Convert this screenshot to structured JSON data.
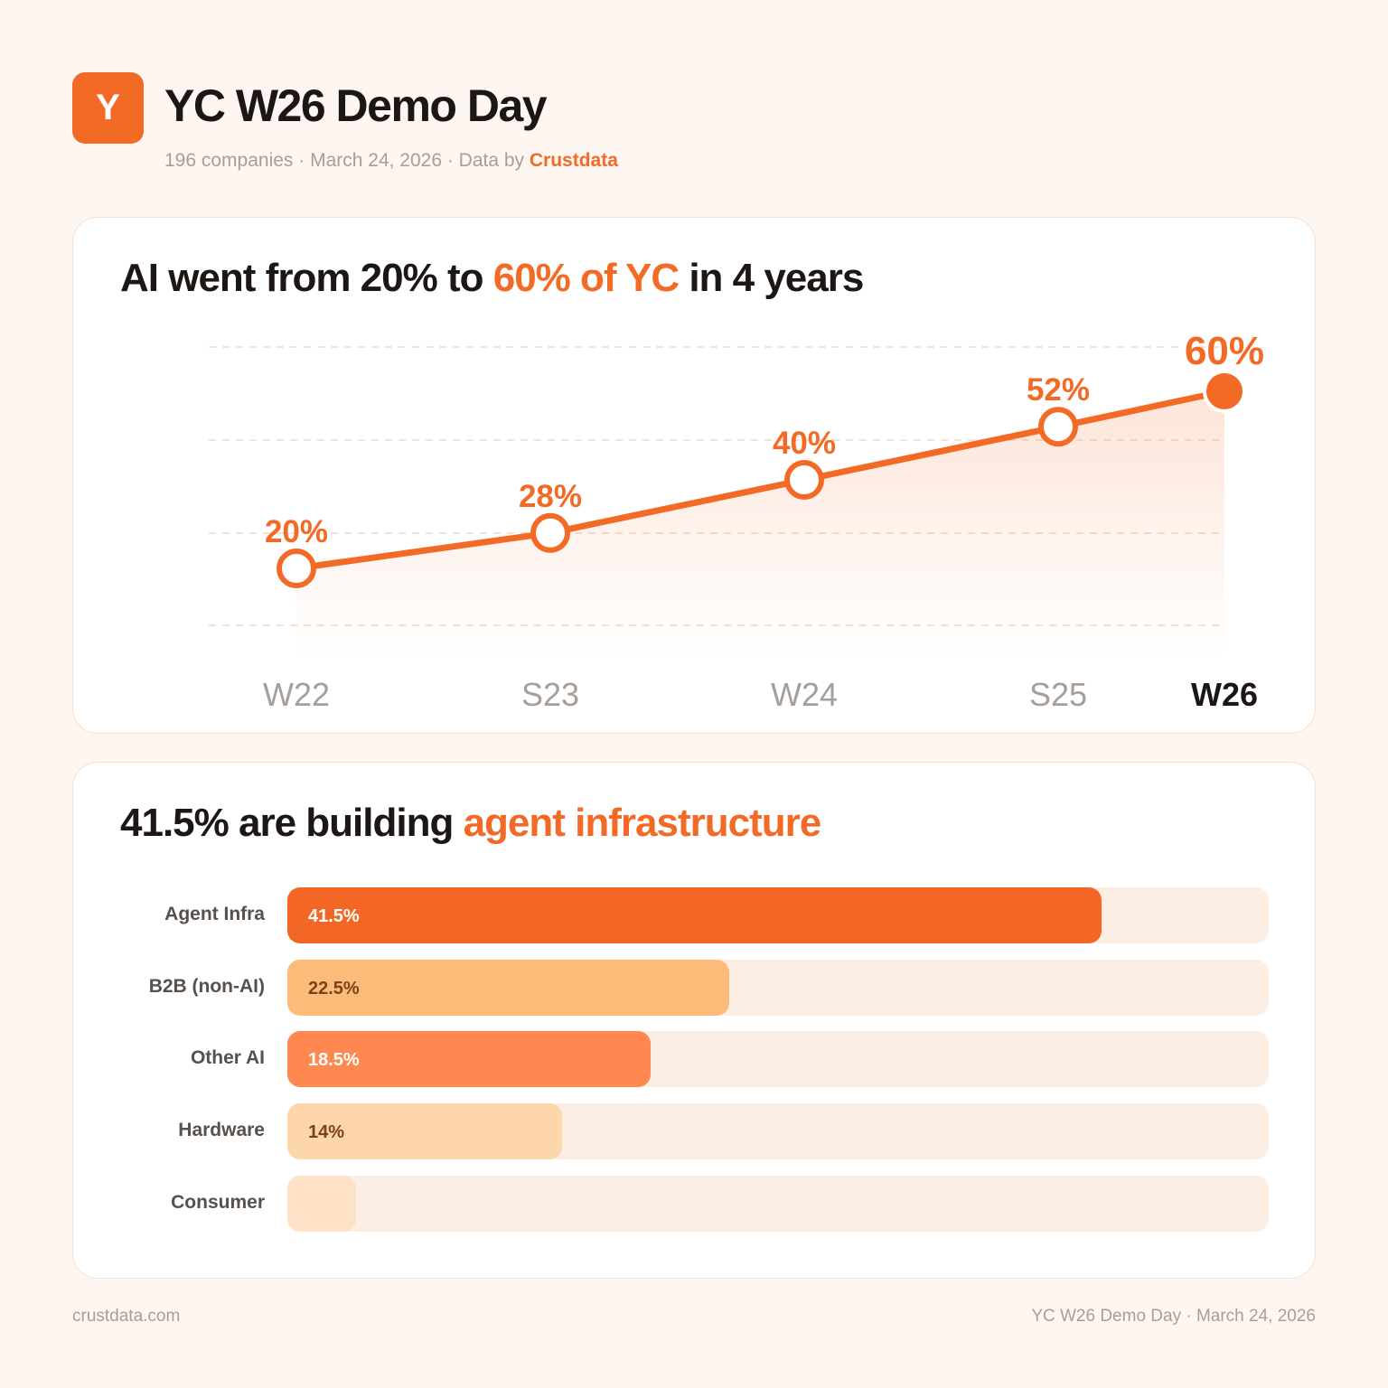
{
  "header": {
    "logo_letter": "Y",
    "title": "YC W26 Demo Day",
    "subtitle_prefix": "196 companies · March 24, 2026 · Data by ",
    "subtitle_brand": "Crustdata"
  },
  "colors": {
    "accent": "#f26a25",
    "background": "#fdf6f1"
  },
  "chart_data": [
    {
      "type": "line",
      "title_parts": [
        "AI went from 20% to ",
        "60% of YC",
        " in 4 years"
      ],
      "categories": [
        "W22",
        "S23",
        "W24",
        "S25",
        "W26"
      ],
      "values": [
        20,
        28,
        40,
        52,
        60
      ],
      "labels": [
        "20%",
        "28%",
        "40%",
        "52%",
        "60%"
      ],
      "ylim": [
        0,
        78
      ],
      "grid": true,
      "highlight": "W26"
    },
    {
      "type": "bar",
      "orientation": "horizontal",
      "title_parts": [
        "41.5% are building ",
        "agent infrastructure"
      ],
      "categories": [
        "Agent Infra",
        "B2B (non-AI)",
        "Other AI",
        "Hardware",
        "Consumer"
      ],
      "values": [
        41.5,
        22.5,
        18.5,
        14,
        3.5
      ],
      "labels": [
        "41.5%",
        "22.5%",
        "18.5%",
        "14%",
        ""
      ],
      "xlim": [
        0,
        50
      ],
      "bar_colors": [
        "#f26725",
        "#fcbb78",
        "#fe884f",
        "#fdd6a9",
        "#fde2c8"
      ],
      "label_colors": [
        "#ffffff",
        "#7a4318",
        "#ffffff",
        "#7a4318",
        "#7a4318"
      ]
    }
  ],
  "footer": {
    "left": "crustdata.com",
    "right": "YC W26 Demo Day · March 24, 2026"
  }
}
